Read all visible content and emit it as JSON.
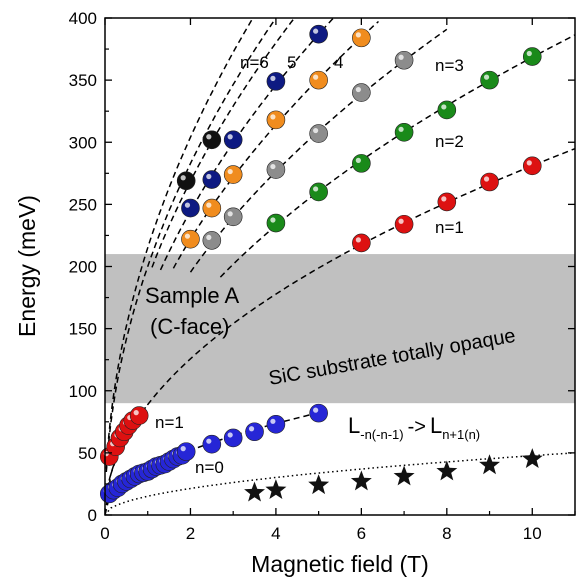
{
  "chart_data": {
    "type": "scatter",
    "xlabel": "Magnetic field (T)",
    "ylabel": "Energy (meV)",
    "xlim": [
      0,
      11
    ],
    "ylim": [
      0,
      400
    ],
    "x_ticks": [
      0,
      2,
      4,
      6,
      8,
      10
    ],
    "y_ticks": [
      0,
      50,
      100,
      150,
      200,
      250,
      300,
      350,
      400
    ],
    "grid": false,
    "shaded_band": {
      "y_from": 90,
      "y_to": 210,
      "color": "#c0c0c0"
    },
    "annotations": {
      "sample": "Sample A",
      "face": "(C-face)",
      "substrate": "SiC substrate totally opaque",
      "n6": "n=6",
      "n5": "5",
      "n4": "4",
      "n3": "n=3",
      "n2": "n=2",
      "n1_high": "n=1",
      "n1_low": "n=1",
      "n0": "n=0",
      "transition_main": "L",
      "transition_sub1": "-n(-n-1)",
      "transition_arrow": "->",
      "transition_main2": "L",
      "transition_sub2": "n+1(n)"
    },
    "series": [
      {
        "color": "#dd1111",
        "marker": "circle",
        "x": [
          6,
          7,
          8,
          9,
          10
        ],
        "y": [
          219,
          234,
          252,
          268,
          281
        ],
        "fit": {
          "coef": 88.9,
          "from": 0,
          "to": 11
        }
      },
      {
        "color": "#1a8a1a",
        "marker": "circle",
        "x": [
          4,
          5,
          6,
          7,
          8,
          9,
          10
        ],
        "y": [
          235,
          260,
          283,
          308,
          326,
          350,
          369
        ],
        "fit": {
          "coef": 116.5,
          "from": 2.7,
          "to": 11
        }
      },
      {
        "color": "#8c8c8c",
        "marker": "circle",
        "x": [
          2.5,
          3,
          4,
          5,
          6,
          7
        ],
        "y": [
          221,
          240,
          278,
          307,
          340,
          366
        ],
        "fit": {
          "coef": 138.2,
          "from": 2.0,
          "to": 8
        }
      },
      {
        "color": "#f08c1e",
        "marker": "circle",
        "x": [
          2,
          2.5,
          3,
          4,
          5,
          6
        ],
        "y": [
          222,
          247,
          274,
          318,
          350,
          384
        ],
        "fit": {
          "coef": 157,
          "from": 1.6,
          "to": 6.4
        }
      },
      {
        "color": "#0e1a82",
        "marker": "circle",
        "x": [
          2,
          2.5,
          3,
          4,
          5
        ],
        "y": [
          247,
          270,
          302,
          349,
          387
        ],
        "fit": {
          "coef": 173,
          "from": 1.3,
          "to": 5.5
        }
      },
      {
        "color": "#111111",
        "marker": "circle",
        "x": [
          1.9,
          2.5
        ],
        "y": [
          269,
          302
        ],
        "fit": {
          "coef": 190,
          "from": 1.1,
          "to": 4.6
        }
      },
      {
        "color": "#dd1111",
        "marker": "circle",
        "x": [
          0.1,
          0.25,
          0.35,
          0.45,
          0.55,
          0.65,
          0.8
        ],
        "y": [
          47,
          55,
          62,
          67,
          72,
          76,
          80
        ],
        "fit": {
          "coef": 88.9,
          "from": 0.05,
          "to": 0.95
        }
      },
      {
        "color": "#2626d6",
        "marker": "circle",
        "x": [
          0.1,
          0.2,
          0.3,
          0.4,
          0.5,
          0.6,
          0.7,
          0.8,
          0.9,
          1.0,
          1.1,
          1.2,
          1.3,
          1.4,
          1.5,
          1.6,
          1.7,
          1.8,
          1.9,
          2.5,
          3,
          3.5,
          4,
          5
        ],
        "y": [
          17,
          20,
          22,
          25,
          27,
          29,
          31,
          33,
          34,
          35,
          37,
          39,
          40,
          41,
          43,
          45,
          47,
          48,
          51,
          57,
          62,
          67,
          73,
          82
        ],
        "fit": {
          "coef": 36.8,
          "from": 0,
          "to": 5.2
        }
      },
      {
        "color": "#111111",
        "marker": "star",
        "x": [
          3.5,
          4,
          5,
          6,
          7,
          8,
          9,
          10
        ],
        "y": [
          18,
          20,
          24,
          27,
          31,
          35,
          40,
          45
        ],
        "fit": {
          "coef": 15.1,
          "from": 0,
          "to": 11
        }
      }
    ],
    "extra_curves": [
      {
        "coef": 200,
        "from": 0.03,
        "to": 4.2
      },
      {
        "coef": 215,
        "from": 0.03,
        "to": 3.6
      }
    ]
  }
}
